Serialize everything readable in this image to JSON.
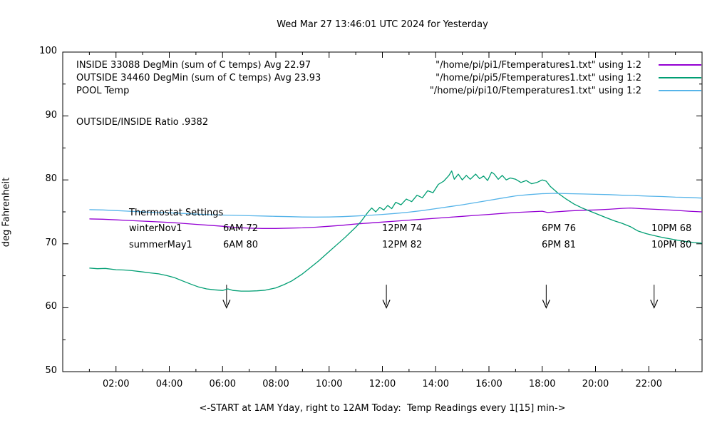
{
  "title": "Wed Mar 27 13:46:01 UTC 2024 for Yesterday",
  "chart_data": {
    "type": "line",
    "xlabel": "<-START at 1AM Yday, right to 12AM Today:  Temp Readings every 1[15] min->",
    "ylabel": "deg Fahrenheit",
    "xlim": [
      0,
      24
    ],
    "ylim": [
      50,
      100
    ],
    "grid": false,
    "legend_position": "top-inside",
    "x_ticks": [
      {
        "h": 2,
        "label": "02:00"
      },
      {
        "h": 4,
        "label": "04:00"
      },
      {
        "h": 6,
        "label": "06:00"
      },
      {
        "h": 8,
        "label": "08:00"
      },
      {
        "h": 10,
        "label": "10:00"
      },
      {
        "h": 12,
        "label": "12:00"
      },
      {
        "h": 14,
        "label": "14:00"
      },
      {
        "h": 16,
        "label": "16:00"
      },
      {
        "h": 18,
        "label": "18:00"
      },
      {
        "h": 20,
        "label": "20:00"
      },
      {
        "h": 22,
        "label": "22:00"
      }
    ],
    "x_minor_ticks": [
      1,
      3,
      5,
      7,
      9,
      11,
      13,
      15,
      17,
      19,
      21,
      23
    ],
    "y_ticks": [
      {
        "v": 50,
        "label": "50"
      },
      {
        "v": 60,
        "label": "60"
      },
      {
        "v": 70,
        "label": "70"
      },
      {
        "v": 80,
        "label": "80"
      },
      {
        "v": 90,
        "label": "90"
      },
      {
        "v": 100,
        "label": "100"
      }
    ],
    "y_minor_ticks": [
      55,
      65,
      75,
      85,
      95
    ],
    "legend": [
      {
        "left": "INSIDE 33088 DegMin (sum of C temps) Avg 22.97",
        "right": "\"/home/pi/pi1/Ftemperatures1.txt\" using 1:2",
        "color": "#9400d3"
      },
      {
        "left": "OUTSIDE 34460 DegMin (sum of C temps) Avg 23.93",
        "right": "\"/home/pi/pi5/Ftemperatures1.txt\" using 1:2",
        "color": "#009e73"
      },
      {
        "left": "POOL Temp",
        "right": "\"/home/pi/pi10/Ftemperatures1.txt\" using 1:2",
        "color": "#56b4e9"
      }
    ],
    "annotations": {
      "ratio": "OUTSIDE/INSIDE Ratio .9382",
      "thermostat": {
        "title": "Thermostat Settings",
        "rows": [
          {
            "name": "winterNov1",
            "settings": [
              "6AM 72",
              "12PM 74",
              "6PM 76",
              "10PM 68"
            ]
          },
          {
            "name": "summerMay1",
            "settings": [
              "6AM 80",
              "12PM 82",
              "6PM 81",
              "10PM 80"
            ]
          }
        ]
      },
      "arrow_hours": [
        6.15,
        12.15,
        18.15,
        22.2
      ],
      "arrow_top_f": 63.6,
      "arrow_tip_f": 60.0
    },
    "series": [
      {
        "name": "INSIDE",
        "color": "#9400d3",
        "points": [
          [
            1,
            73.9
          ],
          [
            1.5,
            73.85
          ],
          [
            2,
            73.75
          ],
          [
            2.5,
            73.65
          ],
          [
            3,
            73.55
          ],
          [
            3.5,
            73.45
          ],
          [
            4,
            73.35
          ],
          [
            4.5,
            73.2
          ],
          [
            5,
            73.05
          ],
          [
            5.5,
            72.9
          ],
          [
            6,
            72.75
          ],
          [
            6.5,
            72.55
          ],
          [
            7,
            72.45
          ],
          [
            7.5,
            72.4
          ],
          [
            8,
            72.4
          ],
          [
            8.5,
            72.45
          ],
          [
            9,
            72.5
          ],
          [
            9.5,
            72.6
          ],
          [
            10,
            72.75
          ],
          [
            10.5,
            72.9
          ],
          [
            11,
            73.1
          ],
          [
            11.5,
            73.25
          ],
          [
            12,
            73.4
          ],
          [
            12.5,
            73.55
          ],
          [
            13,
            73.7
          ],
          [
            13.5,
            73.85
          ],
          [
            14,
            74.0
          ],
          [
            14.5,
            74.15
          ],
          [
            15,
            74.3
          ],
          [
            15.5,
            74.45
          ],
          [
            16,
            74.6
          ],
          [
            16.5,
            74.75
          ],
          [
            17,
            74.9
          ],
          [
            17.5,
            75.0
          ],
          [
            18,
            75.1
          ],
          [
            18.2,
            74.9
          ],
          [
            18.5,
            75.0
          ],
          [
            19,
            75.15
          ],
          [
            19.5,
            75.25
          ],
          [
            20,
            75.3
          ],
          [
            20.5,
            75.4
          ],
          [
            21,
            75.55
          ],
          [
            21.3,
            75.6
          ],
          [
            21.7,
            75.5
          ],
          [
            22,
            75.45
          ],
          [
            22.5,
            75.35
          ],
          [
            23,
            75.25
          ],
          [
            23.5,
            75.1
          ],
          [
            24,
            75.0
          ]
        ]
      },
      {
        "name": "OUTSIDE",
        "color": "#009e73",
        "points": [
          [
            1,
            66.2
          ],
          [
            1.3,
            66.1
          ],
          [
            1.6,
            66.15
          ],
          [
            2,
            65.95
          ],
          [
            2.3,
            65.9
          ],
          [
            2.6,
            65.8
          ],
          [
            3,
            65.6
          ],
          [
            3.3,
            65.45
          ],
          [
            3.6,
            65.3
          ],
          [
            3.9,
            65.05
          ],
          [
            4.2,
            64.7
          ],
          [
            4.5,
            64.2
          ],
          [
            4.8,
            63.7
          ],
          [
            5.1,
            63.25
          ],
          [
            5.4,
            62.95
          ],
          [
            5.7,
            62.8
          ],
          [
            6,
            62.7
          ],
          [
            6.2,
            62.95
          ],
          [
            6.4,
            62.7
          ],
          [
            6.7,
            62.6
          ],
          [
            7,
            62.6
          ],
          [
            7.3,
            62.65
          ],
          [
            7.6,
            62.75
          ],
          [
            8,
            63.1
          ],
          [
            8.3,
            63.6
          ],
          [
            8.6,
            64.2
          ],
          [
            9,
            65.3
          ],
          [
            9.3,
            66.3
          ],
          [
            9.6,
            67.3
          ],
          [
            10,
            68.8
          ],
          [
            10.3,
            69.9
          ],
          [
            10.6,
            71.0
          ],
          [
            11,
            72.6
          ],
          [
            11.2,
            73.5
          ],
          [
            11.45,
            74.9
          ],
          [
            11.6,
            75.6
          ],
          [
            11.75,
            75.0
          ],
          [
            11.9,
            75.7
          ],
          [
            12.05,
            75.3
          ],
          [
            12.2,
            76.0
          ],
          [
            12.35,
            75.5
          ],
          [
            12.5,
            76.5
          ],
          [
            12.7,
            76.1
          ],
          [
            12.9,
            77.0
          ],
          [
            13.1,
            76.6
          ],
          [
            13.3,
            77.6
          ],
          [
            13.5,
            77.2
          ],
          [
            13.7,
            78.3
          ],
          [
            13.9,
            78.0
          ],
          [
            14.1,
            79.3
          ],
          [
            14.3,
            79.8
          ],
          [
            14.5,
            80.7
          ],
          [
            14.6,
            81.4
          ],
          [
            14.7,
            80.1
          ],
          [
            14.85,
            80.9
          ],
          [
            15,
            80.0
          ],
          [
            15.15,
            80.7
          ],
          [
            15.3,
            80.1
          ],
          [
            15.5,
            80.9
          ],
          [
            15.65,
            80.2
          ],
          [
            15.8,
            80.6
          ],
          [
            15.95,
            79.9
          ],
          [
            16.1,
            81.2
          ],
          [
            16.2,
            80.9
          ],
          [
            16.35,
            80.1
          ],
          [
            16.5,
            80.7
          ],
          [
            16.65,
            80.0
          ],
          [
            16.8,
            80.3
          ],
          [
            17,
            80.1
          ],
          [
            17.2,
            79.6
          ],
          [
            17.4,
            79.9
          ],
          [
            17.6,
            79.4
          ],
          [
            17.8,
            79.6
          ],
          [
            18,
            80.0
          ],
          [
            18.15,
            79.8
          ],
          [
            18.3,
            79.0
          ],
          [
            18.6,
            77.9
          ],
          [
            18.9,
            77.0
          ],
          [
            19.2,
            76.2
          ],
          [
            19.5,
            75.6
          ],
          [
            19.8,
            75.1
          ],
          [
            20.1,
            74.6
          ],
          [
            20.4,
            74.1
          ],
          [
            20.7,
            73.6
          ],
          [
            21,
            73.2
          ],
          [
            21.3,
            72.7
          ],
          [
            21.6,
            72.0
          ],
          [
            21.9,
            71.6
          ],
          [
            22.2,
            71.3
          ],
          [
            22.5,
            71.0
          ],
          [
            22.9,
            70.7
          ],
          [
            23.3,
            70.4
          ],
          [
            23.7,
            70.2
          ],
          [
            24,
            70.1
          ]
        ]
      },
      {
        "name": "POOL",
        "color": "#56b4e9",
        "points": [
          [
            1,
            75.35
          ],
          [
            1.5,
            75.3
          ],
          [
            2,
            75.2
          ],
          [
            2.5,
            75.1
          ],
          [
            3,
            75.0
          ],
          [
            3.5,
            74.9
          ],
          [
            4,
            74.85
          ],
          [
            4.5,
            74.75
          ],
          [
            5,
            74.65
          ],
          [
            5.5,
            74.55
          ],
          [
            6,
            74.5
          ],
          [
            6.5,
            74.45
          ],
          [
            7,
            74.4
          ],
          [
            7.5,
            74.35
          ],
          [
            8,
            74.3
          ],
          [
            8.5,
            74.25
          ],
          [
            9,
            74.2
          ],
          [
            9.5,
            74.18
          ],
          [
            10,
            74.2
          ],
          [
            10.5,
            74.25
          ],
          [
            11,
            74.35
          ],
          [
            11.5,
            74.45
          ],
          [
            12,
            74.6
          ],
          [
            12.5,
            74.75
          ],
          [
            13,
            74.95
          ],
          [
            13.5,
            75.2
          ],
          [
            14,
            75.5
          ],
          [
            14.5,
            75.8
          ],
          [
            15,
            76.1
          ],
          [
            15.5,
            76.45
          ],
          [
            16,
            76.8
          ],
          [
            16.5,
            77.15
          ],
          [
            17,
            77.5
          ],
          [
            17.5,
            77.7
          ],
          [
            18,
            77.85
          ],
          [
            18.5,
            77.9
          ],
          [
            19,
            77.85
          ],
          [
            19.5,
            77.8
          ],
          [
            20,
            77.75
          ],
          [
            20.5,
            77.7
          ],
          [
            21,
            77.6
          ],
          [
            21.5,
            77.55
          ],
          [
            22,
            77.45
          ],
          [
            22.5,
            77.4
          ],
          [
            23,
            77.3
          ],
          [
            23.5,
            77.25
          ],
          [
            24,
            77.15
          ]
        ]
      }
    ]
  }
}
